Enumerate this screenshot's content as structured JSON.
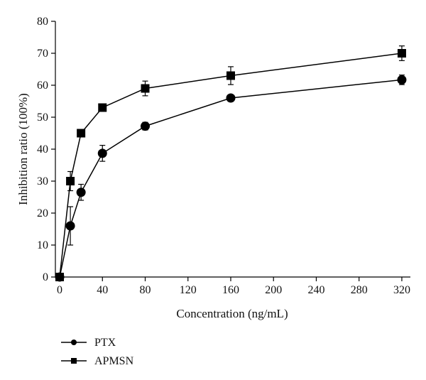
{
  "chart_data": {
    "type": "line",
    "title": "",
    "xlabel": "Concentration (ng/mL)",
    "ylabel": "Inhibition ratio (100%)",
    "xlim": [
      -4,
      328
    ],
    "ylim": [
      0,
      80
    ],
    "xticks": [
      0,
      40,
      80,
      120,
      160,
      200,
      240,
      280,
      320
    ],
    "yticks": [
      0,
      10,
      20,
      30,
      40,
      50,
      60,
      70,
      80
    ],
    "grid": false,
    "legend_position": "bottom-left",
    "series": [
      {
        "name": "PTX",
        "marker": "circle",
        "color": "#000000",
        "x": [
          0,
          10,
          20,
          40,
          80,
          160,
          320
        ],
        "y": [
          0,
          16,
          26.5,
          38.7,
          47.2,
          56,
          61.7
        ],
        "error": [
          0,
          6,
          2.5,
          2.5,
          1.2,
          0.8,
          1.5
        ]
      },
      {
        "name": "APMSN",
        "marker": "square",
        "color": "#000000",
        "x": [
          0,
          10,
          20,
          40,
          80,
          160,
          320
        ],
        "y": [
          0,
          30,
          45,
          53,
          59,
          63,
          70
        ],
        "error": [
          0,
          3,
          0.8,
          1,
          2.3,
          2.8,
          2.3
        ]
      }
    ]
  }
}
